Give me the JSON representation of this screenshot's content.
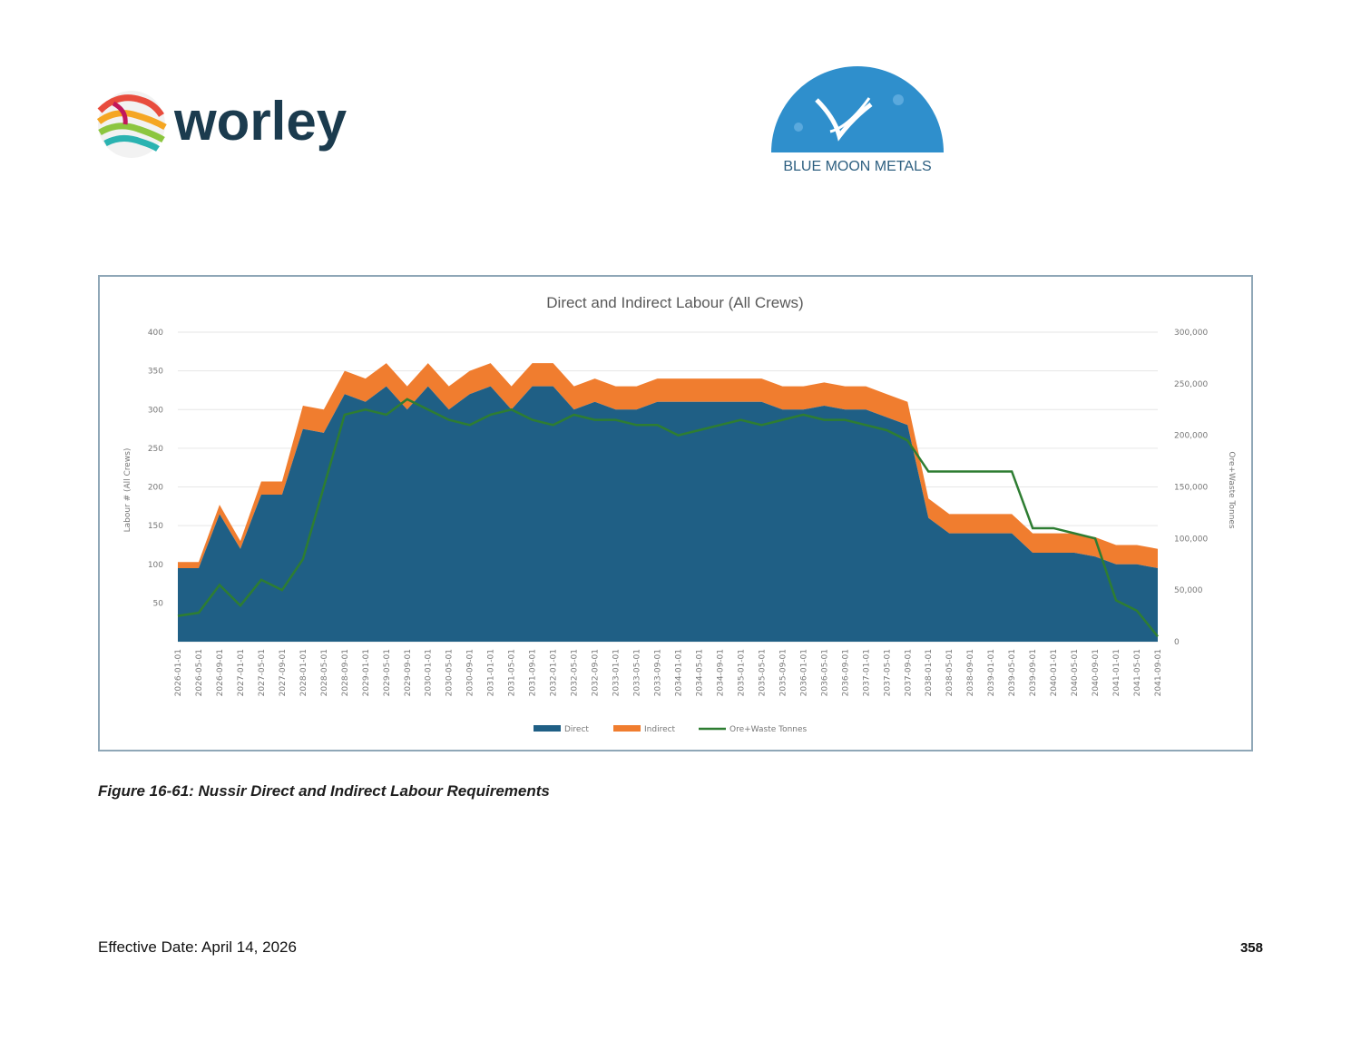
{
  "logos": {
    "worley": {
      "text": "worley",
      "color": "#1b3b4e"
    },
    "blue_moon": {
      "text": "BLUE MOON METALS",
      "circle_color": "#2f8fcc"
    }
  },
  "caption": "Figure 16-61: Nussir Direct and Indirect Labour Requirements",
  "footer": {
    "effective_date": "Effective Date: April 14, 2026",
    "page_number": "358"
  },
  "colors": {
    "direct": "#1f5f85",
    "indirect": "#f07d2f",
    "ore_waste": "#2e7d32",
    "frame": "#8fa7b7",
    "grid": "#e6e6e6"
  },
  "chart_data": {
    "type": "area",
    "title": "Direct and Indirect Labour (All Crews)",
    "ylabel": "Labour # (All Crews)",
    "y2label": "Ore+Waste Tonnes",
    "ylim": [
      0,
      400
    ],
    "y2lim": [
      0,
      300000
    ],
    "yticks": [
      "400",
      "350",
      "300",
      "250",
      "200",
      "150",
      "100",
      "50",
      ""
    ],
    "y2ticks": [
      "300,000",
      "250,000",
      "200,000",
      "150,000",
      "100,000",
      "50,000",
      "0"
    ],
    "grid": true,
    "legend_position": "bottom",
    "x_tick_labels": [
      "2026-01-01",
      "2026-05-01",
      "2026-09-01",
      "2027-01-01",
      "2027-05-01",
      "2027-09-01",
      "2028-01-01",
      "2028-05-01",
      "2028-09-01",
      "2029-01-01",
      "2029-05-01",
      "2029-09-01",
      "2030-01-01",
      "2030-05-01",
      "2030-09-01",
      "2031-01-01",
      "2031-05-01",
      "2031-09-01",
      "2032-01-01",
      "2032-05-01",
      "2032-09-01",
      "2033-01-01",
      "2033-05-01",
      "2033-09-01",
      "2034-01-01",
      "2034-05-01",
      "2034-09-01",
      "2035-01-01",
      "2035-05-01",
      "2035-09-01",
      "2036-01-01",
      "2036-05-01",
      "2036-09-01",
      "2037-01-01",
      "2037-05-01",
      "2037-09-01",
      "2038-01-01",
      "2038-05-01",
      "2038-09-01",
      "2039-01-01",
      "2039-05-01",
      "2039-09-01",
      "2040-01-01",
      "2040-05-01",
      "2040-09-01",
      "2041-01-01",
      "2041-05-01",
      "2041-09-01"
    ],
    "series": [
      {
        "name": "Direct",
        "type": "area",
        "values": [
          95,
          95,
          165,
          120,
          190,
          190,
          275,
          270,
          320,
          310,
          330,
          300,
          330,
          300,
          320,
          330,
          300,
          330,
          330,
          300,
          310,
          300,
          300,
          310,
          310,
          310,
          310,
          310,
          310,
          300,
          300,
          305,
          300,
          300,
          290,
          280,
          160,
          140,
          140,
          140,
          140,
          115,
          115,
          115,
          110,
          100,
          100,
          95
        ]
      },
      {
        "name": "Indirect",
        "type": "area",
        "values": [
          8,
          8,
          12,
          10,
          17,
          17,
          30,
          30,
          30,
          30,
          30,
          30,
          30,
          30,
          30,
          30,
          30,
          30,
          30,
          30,
          30,
          30,
          30,
          30,
          30,
          30,
          30,
          30,
          30,
          30,
          30,
          30,
          30,
          30,
          30,
          30,
          25,
          25,
          25,
          25,
          25,
          25,
          25,
          25,
          25,
          25,
          25,
          25
        ]
      },
      {
        "name": "Ore+Waste Tonnes",
        "type": "line",
        "axis": "right",
        "values": [
          25000,
          28000,
          55000,
          35000,
          60000,
          50000,
          80000,
          150000,
          220000,
          225000,
          220000,
          235000,
          225000,
          215000,
          210000,
          220000,
          225000,
          215000,
          210000,
          220000,
          215000,
          215000,
          210000,
          210000,
          200000,
          205000,
          210000,
          215000,
          210000,
          215000,
          220000,
          215000,
          215000,
          210000,
          205000,
          195000,
          165000,
          165000,
          165000,
          165000,
          165000,
          110000,
          110000,
          105000,
          100000,
          40000,
          30000,
          5000
        ]
      }
    ]
  }
}
